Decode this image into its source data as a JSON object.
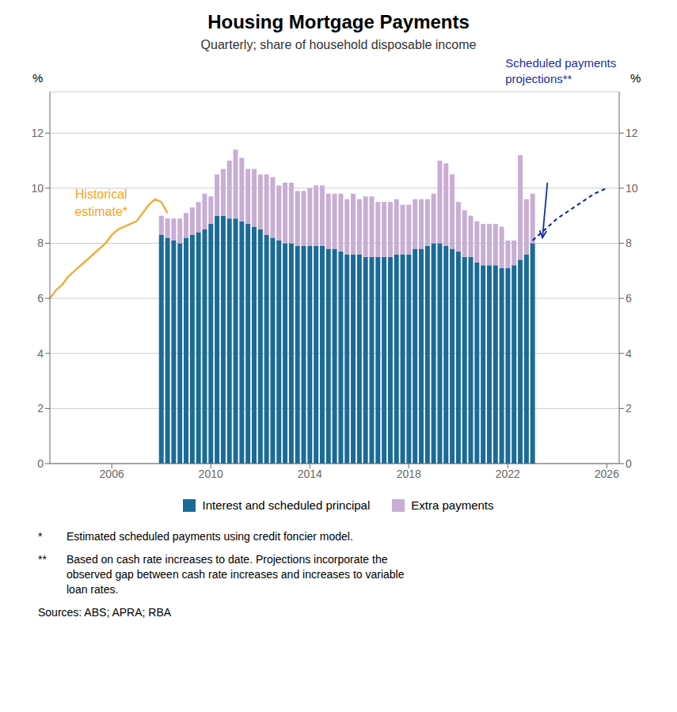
{
  "chart_data": {
    "type": "bar",
    "title": "Housing Mortgage Payments",
    "subtitle": "Quarterly; share of household disposable income",
    "ylabel": "%",
    "y2label": "%",
    "xlim": [
      2003.5,
      2026.5
    ],
    "xticks": [
      2006,
      2010,
      2014,
      2018,
      2022,
      2026
    ],
    "ylim": [
      0,
      13.5
    ],
    "yticks": [
      0,
      2,
      4,
      6,
      8,
      10,
      12
    ],
    "y2lim": [
      0,
      13.5
    ],
    "y2ticks": [
      0,
      2,
      4,
      6,
      8,
      10,
      12
    ],
    "grid": true,
    "stacked": true,
    "legend": "bottom",
    "series": [
      {
        "name": "Interest and scheduled principal",
        "type": "bar",
        "color": "#1b6b96",
        "x": [
          2008.0,
          2008.25,
          2008.5,
          2008.75,
          2009.0,
          2009.25,
          2009.5,
          2009.75,
          2010.0,
          2010.25,
          2010.5,
          2010.75,
          2011.0,
          2011.25,
          2011.5,
          2011.75,
          2012.0,
          2012.25,
          2012.5,
          2012.75,
          2013.0,
          2013.25,
          2013.5,
          2013.75,
          2014.0,
          2014.25,
          2014.5,
          2014.75,
          2015.0,
          2015.25,
          2015.5,
          2015.75,
          2016.0,
          2016.25,
          2016.5,
          2016.75,
          2017.0,
          2017.25,
          2017.5,
          2017.75,
          2018.0,
          2018.25,
          2018.5,
          2018.75,
          2019.0,
          2019.25,
          2019.5,
          2019.75,
          2020.0,
          2020.25,
          2020.5,
          2020.75,
          2021.0,
          2021.25,
          2021.5,
          2021.75,
          2022.0,
          2022.25,
          2022.5,
          2022.75,
          2023.0
        ],
        "values": [
          8.3,
          8.2,
          8.1,
          8.0,
          8.2,
          8.3,
          8.4,
          8.5,
          8.7,
          9.0,
          9.0,
          8.9,
          8.9,
          8.8,
          8.7,
          8.6,
          8.5,
          8.3,
          8.2,
          8.1,
          8.0,
          8.0,
          7.9,
          7.9,
          7.9,
          7.9,
          7.9,
          7.8,
          7.8,
          7.7,
          7.6,
          7.6,
          7.6,
          7.5,
          7.5,
          7.5,
          7.5,
          7.5,
          7.6,
          7.6,
          7.6,
          7.8,
          7.8,
          7.9,
          8.0,
          8.0,
          7.9,
          7.8,
          7.7,
          7.5,
          7.5,
          7.3,
          7.2,
          7.2,
          7.2,
          7.1,
          7.1,
          7.2,
          7.4,
          7.6,
          8.0
        ]
      },
      {
        "name": "Extra payments",
        "type": "bar",
        "color": "#c8aed4",
        "x": [
          2008.0,
          2008.25,
          2008.5,
          2008.75,
          2009.0,
          2009.25,
          2009.5,
          2009.75,
          2010.0,
          2010.25,
          2010.5,
          2010.75,
          2011.0,
          2011.25,
          2011.5,
          2011.75,
          2012.0,
          2012.25,
          2012.5,
          2012.75,
          2013.0,
          2013.25,
          2013.5,
          2013.75,
          2014.0,
          2014.25,
          2014.5,
          2014.75,
          2015.0,
          2015.25,
          2015.5,
          2015.75,
          2016.0,
          2016.25,
          2016.5,
          2016.75,
          2017.0,
          2017.25,
          2017.5,
          2017.75,
          2018.0,
          2018.25,
          2018.5,
          2018.75,
          2019.0,
          2019.25,
          2019.5,
          2019.75,
          2020.0,
          2020.25,
          2020.5,
          2020.75,
          2021.0,
          2021.25,
          2021.5,
          2021.75,
          2022.0,
          2022.25,
          2022.5,
          2022.75,
          2023.0
        ],
        "values": [
          0.7,
          0.7,
          0.8,
          0.9,
          0.9,
          1.0,
          1.1,
          1.3,
          1.0,
          1.5,
          1.7,
          2.1,
          2.5,
          2.3,
          2.0,
          2.1,
          2.0,
          2.2,
          2.2,
          2.0,
          2.2,
          2.2,
          2.0,
          2.0,
          2.1,
          2.2,
          2.2,
          2.0,
          2.0,
          2.1,
          2.0,
          2.2,
          2.0,
          2.2,
          2.2,
          2.0,
          2.0,
          2.0,
          2.0,
          1.8,
          1.8,
          1.8,
          1.8,
          1.7,
          1.8,
          3.0,
          3.0,
          2.7,
          1.8,
          1.7,
          1.5,
          1.5,
          1.5,
          1.5,
          1.5,
          1.5,
          1.0,
          0.9,
          3.8,
          2.0,
          1.8
        ]
      },
      {
        "type": "line",
        "color": "#f5a623",
        "line_style": "solid",
        "x": [
          2003.5,
          2003.75,
          2004.0,
          2004.25,
          2004.5,
          2004.75,
          2005.0,
          2005.25,
          2005.5,
          2005.75,
          2006.0,
          2006.25,
          2006.5,
          2006.75,
          2007.0,
          2007.25,
          2007.5,
          2007.75,
          2008.0,
          2008.25
        ],
        "values": [
          6.0,
          6.3,
          6.5,
          6.8,
          7.0,
          7.2,
          7.4,
          7.6,
          7.8,
          8.0,
          8.3,
          8.5,
          8.6,
          8.7,
          8.8,
          9.1,
          9.4,
          9.6,
          9.5,
          9.1
        ]
      },
      {
        "type": "line",
        "color": "#1a2fa0",
        "line_style": "dashed",
        "x": [
          2023.0,
          2023.5,
          2024.0,
          2024.5,
          2025.0,
          2025.5,
          2026.0
        ],
        "values": [
          8.1,
          8.5,
          8.9,
          9.2,
          9.5,
          9.8,
          10.0
        ]
      }
    ],
    "annotations": [
      "Historical\nestimate*",
      "Scheduled payments\nprojections**"
    ],
    "footnotes": [
      {
        "marker": "*",
        "text": "Estimated scheduled payments using credit foncier model."
      },
      {
        "marker": "**",
        "text": "Based on cash rate increases to date. Projections incorporate the\nobserved gap between cash rate increases and increases to variable\nloan rates."
      }
    ],
    "source": "Sources: ABS; APRA; RBA"
  }
}
